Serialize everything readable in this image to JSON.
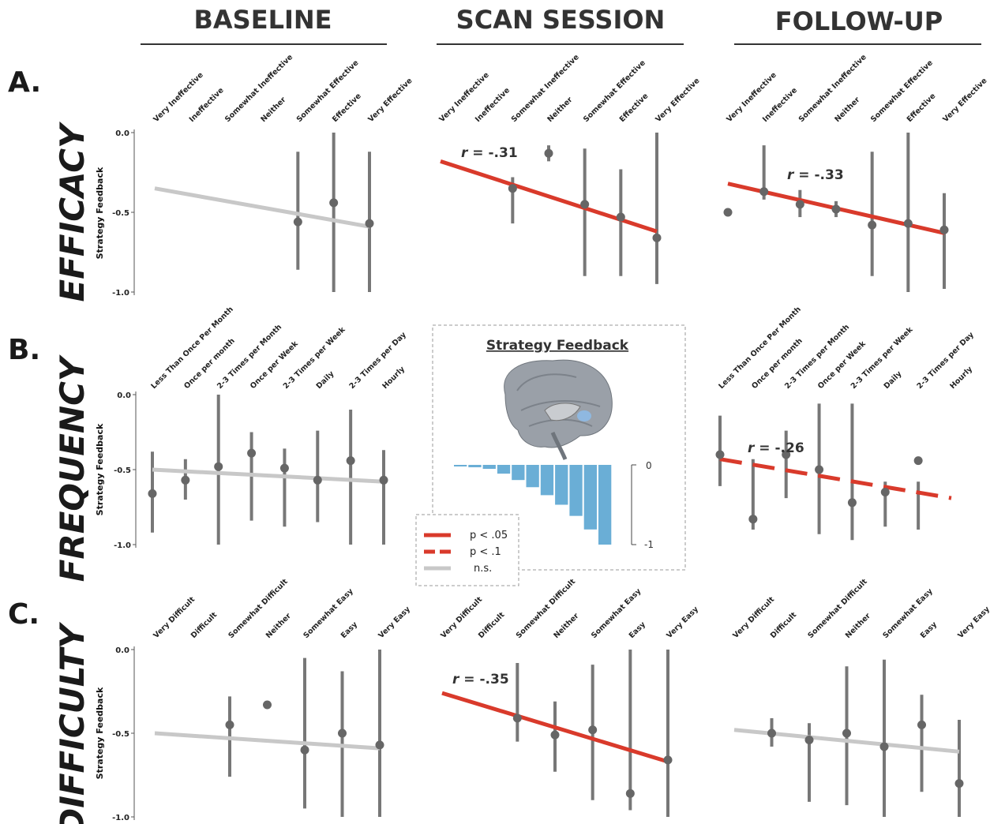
{
  "columns": [
    "BASELINE",
    "SCAN SESSION",
    "FOLLOW-UP"
  ],
  "rows": [
    {
      "letter": "A.",
      "name": "EFFICACY"
    },
    {
      "letter": "B.",
      "name": "FREQUENCY"
    },
    {
      "letter": "C.",
      "name": "DIFFICULTY"
    }
  ],
  "y_axis_label": "Strategy Feedback",
  "inset": {
    "title": "Strategy Feedback",
    "colorbar_ticks": [
      "0",
      "-1"
    ],
    "bar_values": [
      -0.02,
      -0.03,
      -0.05,
      -0.11,
      -0.19,
      -0.28,
      -0.38,
      -0.5,
      -0.64,
      -0.81,
      -1.0
    ],
    "bar_color": "#6aaed6"
  },
  "legend": [
    {
      "label": "p < .05",
      "style": "solid",
      "color": "#d93a2b"
    },
    {
      "label": "p < .1",
      "style": "dashed",
      "color": "#d93a2b"
    },
    {
      "label": "n.s.",
      "style": "solid",
      "color": "#c8c8c8"
    }
  ],
  "colors": {
    "significant": "#d93a2b",
    "nonsignificant": "#c8c8c8",
    "points": "#666666"
  },
  "chart_data": [
    {
      "type": "scatter",
      "panel": "A-baseline",
      "ylim": [
        -1.0,
        0.0
      ],
      "yticks": [
        "0.0",
        "-0.5",
        "-1.0"
      ],
      "categories": [
        "Very Ineffective",
        "Ineffective",
        "Somewhat Ineffective",
        "Neither",
        "Somewhat Effective",
        "Effective",
        "Very Effective"
      ],
      "points": [
        null,
        null,
        null,
        null,
        -0.56,
        -0.44,
        -0.57
      ],
      "error": [
        null,
        null,
        null,
        null,
        [
          -0.86,
          -0.12
        ],
        [
          -1.0,
          0.0
        ],
        [
          -1.0,
          -0.12
        ]
      ],
      "fit": {
        "from": [
          0,
          -0.35
        ],
        "to": [
          6,
          -0.59
        ],
        "sig": "ns"
      },
      "r_label": ""
    },
    {
      "type": "scatter",
      "panel": "A-scan",
      "ylim": [
        -1.0,
        0.0
      ],
      "yticks": [],
      "categories": [
        "Very Ineffective",
        "Ineffective",
        "Somewhat Ineffective",
        "Neither",
        "Somewhat Effective",
        "Effective",
        "Very Effective"
      ],
      "points": [
        null,
        null,
        -0.35,
        -0.13,
        -0.45,
        -0.53,
        -0.66
      ],
      "error": [
        null,
        null,
        [
          -0.57,
          -0.28
        ],
        [
          -0.18,
          -0.08
        ],
        [
          -0.9,
          -0.1
        ],
        [
          -0.9,
          -0.23
        ],
        [
          -0.95,
          0.0
        ]
      ],
      "fit": {
        "from": [
          0,
          -0.18
        ],
        "to": [
          6,
          -0.62
        ],
        "sig": "p05"
      },
      "r_label": "r = -.31"
    },
    {
      "type": "scatter",
      "panel": "A-followup",
      "ylim": [
        -1.0,
        0.0
      ],
      "yticks": [],
      "categories": [
        "Very Ineffective",
        "Ineffective",
        "Somewhat Ineffective",
        "Neither",
        "Somewhat Effective",
        "Effective",
        "Very Effective"
      ],
      "points": [
        -0.5,
        -0.37,
        -0.45,
        -0.48,
        -0.58,
        -0.57,
        -0.61
      ],
      "error": [
        null,
        [
          -0.42,
          -0.08
        ],
        [
          -0.53,
          -0.36
        ],
        [
          -0.53,
          -0.43
        ],
        [
          -0.9,
          -0.12
        ],
        [
          -1.0,
          0.0
        ],
        [
          -0.98,
          -0.38
        ]
      ],
      "fit": {
        "from": [
          0,
          -0.32
        ],
        "to": [
          6,
          -0.63
        ],
        "sig": "p05"
      },
      "r_label": "r = -.33"
    },
    {
      "type": "scatter",
      "panel": "B-baseline",
      "ylim": [
        -1.0,
        0.0
      ],
      "yticks": [
        "0.0",
        "-0.5",
        "-1.0"
      ],
      "categories": [
        "Less Than Once Per Month",
        "Once per month",
        "2-3 Times per Month",
        "Once per Week",
        "2-3 Times per Week",
        "Daily",
        "2-3 Times per Day",
        "Hourly"
      ],
      "points": [
        -0.66,
        -0.57,
        -0.48,
        -0.39,
        -0.49,
        -0.57,
        -0.44,
        -0.57
      ],
      "error": [
        [
          -0.92,
          -0.38
        ],
        [
          -0.7,
          -0.43
        ],
        [
          -1.0,
          0.0
        ],
        [
          -0.84,
          -0.25
        ],
        [
          -0.88,
          -0.36
        ],
        [
          -0.85,
          -0.24
        ],
        [
          -1.0,
          -0.1
        ],
        [
          -1.0,
          -0.37
        ]
      ],
      "fit": {
        "from": [
          0,
          -0.5
        ],
        "to": [
          7,
          -0.58
        ],
        "sig": "ns"
      },
      "r_label": ""
    },
    {
      "type": "scatter",
      "panel": "B-followup",
      "ylim": [
        -1.0,
        0.0
      ],
      "yticks": [],
      "categories": [
        "Less Than Once Per Month",
        "Once per month",
        "2-3 Times per Month",
        "Once per Week",
        "2-3 Times per Week",
        "Daily",
        "2-3 Times per Day",
        "Hourly"
      ],
      "points": [
        -0.4,
        -0.83,
        -0.4,
        -0.5,
        -0.72,
        -0.65,
        -0.44,
        null
      ],
      "error": [
        [
          -0.61,
          -0.14
        ],
        [
          -0.9,
          -0.43
        ],
        [
          -0.69,
          -0.24
        ],
        [
          -0.93,
          -0.06
        ],
        [
          -0.97,
          -0.06
        ],
        [
          -0.88,
          -0.58
        ],
        [
          -0.9,
          -0.58
        ],
        null
      ],
      "fit": {
        "from": [
          0,
          -0.43
        ],
        "to": [
          7,
          -0.69
        ],
        "sig": "p10"
      },
      "r_label": "r = -.26"
    },
    {
      "type": "scatter",
      "panel": "C-baseline",
      "ylim": [
        -1.0,
        0.0
      ],
      "yticks": [
        "0.0",
        "-0.5",
        "-1.0"
      ],
      "categories": [
        "Very Difficult",
        "Difficult",
        "Somewhat Difficult",
        "Neither",
        "Somewhat Easy",
        "Easy",
        "Very Easy"
      ],
      "points": [
        null,
        null,
        -0.45,
        -0.33,
        -0.6,
        -0.5,
        -0.57
      ],
      "error": [
        null,
        null,
        [
          -0.76,
          -0.28
        ],
        null,
        [
          -0.95,
          -0.05
        ],
        [
          -1.0,
          -0.13
        ],
        [
          -1.0,
          0.0
        ]
      ],
      "fit": {
        "from": [
          0,
          -0.5
        ],
        "to": [
          6,
          -0.59
        ],
        "sig": "ns"
      },
      "r_label": ""
    },
    {
      "type": "scatter",
      "panel": "C-scan",
      "ylim": [
        -1.0,
        0.0
      ],
      "yticks": [],
      "categories": [
        "Very Difficult",
        "Difficult",
        "Somewhat Difficult",
        "Neither",
        "Somewhat Easy",
        "Easy",
        "Very Easy"
      ],
      "points": [
        null,
        null,
        -0.41,
        -0.51,
        -0.48,
        -0.86,
        -0.66
      ],
      "error": [
        null,
        null,
        [
          -0.55,
          -0.08
        ],
        [
          -0.73,
          -0.31
        ],
        [
          -0.9,
          -0.09
        ],
        [
          -0.96,
          0.0
        ],
        [
          -1.0,
          0.0
        ]
      ],
      "fit": {
        "from": [
          0,
          -0.26
        ],
        "to": [
          6,
          -0.67
        ],
        "sig": "p05"
      },
      "r_label": "r = -.35"
    },
    {
      "type": "scatter",
      "panel": "C-followup",
      "ylim": [
        -1.0,
        0.0
      ],
      "yticks": [],
      "categories": [
        "Very Difficult",
        "Difficult",
        "Somewhat Difficult",
        "Neither",
        "Somewhat Easy",
        "Easy",
        "Very Easy"
      ],
      "points": [
        null,
        -0.5,
        -0.54,
        -0.5,
        -0.58,
        -0.45,
        -0.8
      ],
      "error": [
        null,
        [
          -0.58,
          -0.41
        ],
        [
          -0.91,
          -0.44
        ],
        [
          -0.93,
          -0.1
        ],
        [
          -1.0,
          -0.06
        ],
        [
          -0.85,
          -0.27
        ],
        [
          -1.0,
          -0.42
        ]
      ],
      "fit": {
        "from": [
          0,
          -0.48
        ],
        "to": [
          6,
          -0.61
        ],
        "sig": "ns"
      },
      "r_label": ""
    }
  ]
}
